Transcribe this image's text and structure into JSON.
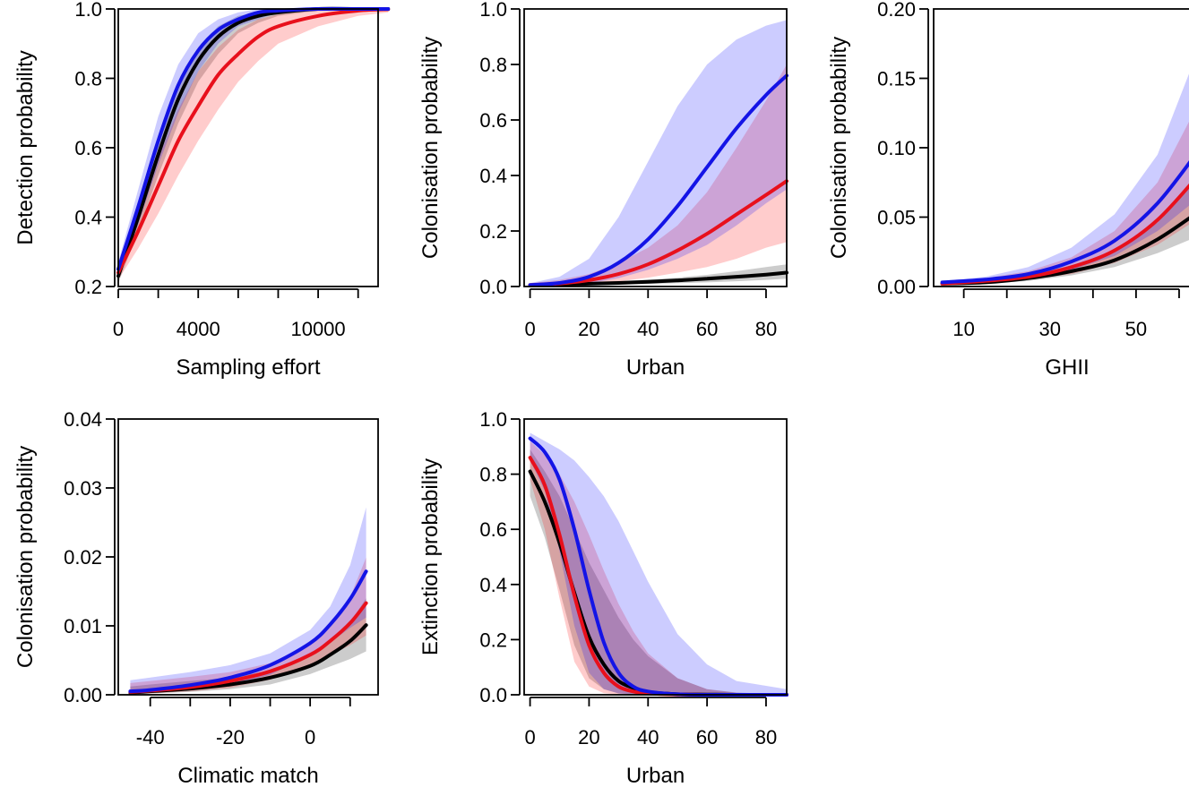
{
  "colors": {
    "black_series": "#000000",
    "red_series": "#e8101c",
    "blue_series": "#1414e6",
    "black_band": "rgba(0,0,0,0.20)",
    "red_band": "rgba(255,0,0,0.20)",
    "blue_band": "rgba(0,0,255,0.20)"
  },
  "chart_data": [
    {
      "type": "line",
      "xlabel": "Sampling effort",
      "ylabel": "Detection probability",
      "xlim": [
        0,
        13000
      ],
      "ylim": [
        0.2,
        1.0
      ],
      "xticks": [
        0,
        2000,
        4000,
        6000,
        8000,
        10000,
        12000
      ],
      "xtick_labels": [
        "0",
        "",
        "4000",
        "",
        "",
        "10000",
        ""
      ],
      "yticks": [
        0.2,
        0.4,
        0.6,
        0.8,
        1.0
      ],
      "ytick_labels": [
        "0.2",
        "0.4",
        "0.6",
        "0.8",
        "1.0"
      ],
      "series": [
        {
          "color": "black",
          "x": [
            0,
            1000,
            2000,
            3000,
            4000,
            5000,
            6000,
            7000,
            8000,
            10000,
            12000,
            13500
          ],
          "y": [
            0.23,
            0.4,
            0.58,
            0.74,
            0.85,
            0.92,
            0.96,
            0.98,
            0.99,
            1.0,
            1.0,
            1.0
          ],
          "lower": [
            0.21,
            0.36,
            0.52,
            0.67,
            0.79,
            0.87,
            0.93,
            0.96,
            0.98,
            0.995,
            1.0,
            1.0
          ],
          "upper": [
            0.25,
            0.44,
            0.63,
            0.79,
            0.89,
            0.95,
            0.98,
            0.99,
            1.0,
            1.0,
            1.0,
            1.0
          ]
        },
        {
          "color": "red",
          "x": [
            0,
            1000,
            2000,
            3000,
            4000,
            5000,
            6000,
            7000,
            8000,
            10000,
            12000,
            13500
          ],
          "y": [
            0.24,
            0.36,
            0.49,
            0.62,
            0.72,
            0.81,
            0.87,
            0.92,
            0.95,
            0.98,
            0.995,
            0.999
          ],
          "lower": [
            0.22,
            0.31,
            0.41,
            0.52,
            0.62,
            0.71,
            0.79,
            0.85,
            0.9,
            0.95,
            0.98,
            0.99
          ],
          "upper": [
            0.26,
            0.41,
            0.57,
            0.71,
            0.82,
            0.89,
            0.94,
            0.97,
            0.985,
            0.997,
            1.0,
            1.0
          ]
        },
        {
          "color": "blue",
          "x": [
            0,
            1000,
            2000,
            3000,
            4000,
            5000,
            6000,
            7000,
            8000,
            10000,
            12000,
            13500
          ],
          "y": [
            0.25,
            0.43,
            0.62,
            0.78,
            0.88,
            0.94,
            0.97,
            0.99,
            0.995,
            1.0,
            1.0,
            1.0
          ],
          "lower": [
            0.23,
            0.38,
            0.55,
            0.7,
            0.82,
            0.9,
            0.95,
            0.97,
            0.99,
            1.0,
            1.0,
            1.0
          ],
          "upper": [
            0.27,
            0.48,
            0.69,
            0.84,
            0.93,
            0.97,
            0.99,
            1.0,
            1.0,
            1.0,
            1.0,
            1.0
          ]
        }
      ]
    },
    {
      "type": "line",
      "xlabel": "Urban",
      "ylabel": "Colonisation probability",
      "xlim": [
        -2,
        87
      ],
      "ylim": [
        0,
        1.0
      ],
      "xticks": [
        0,
        20,
        40,
        60,
        80
      ],
      "xtick_labels": [
        "0",
        "20",
        "40",
        "60",
        "80"
      ],
      "yticks": [
        0,
        0.2,
        0.4,
        0.6,
        0.8,
        1.0
      ],
      "ytick_labels": [
        "0.0",
        "0.2",
        "0.4",
        "0.6",
        "0.8",
        "1.0"
      ],
      "series": [
        {
          "color": "black",
          "x": [
            0,
            10,
            20,
            30,
            40,
            50,
            60,
            70,
            80,
            87
          ],
          "y": [
            0.005,
            0.007,
            0.01,
            0.013,
            0.017,
            0.022,
            0.028,
            0.035,
            0.043,
            0.05
          ],
          "lower": [
            0.002,
            0.003,
            0.005,
            0.007,
            0.009,
            0.012,
            0.015,
            0.019,
            0.024,
            0.028
          ],
          "upper": [
            0.01,
            0.012,
            0.015,
            0.019,
            0.025,
            0.032,
            0.042,
            0.055,
            0.07,
            0.08
          ]
        },
        {
          "color": "red",
          "x": [
            0,
            10,
            20,
            30,
            40,
            50,
            60,
            70,
            80,
            87
          ],
          "y": [
            0.005,
            0.011,
            0.023,
            0.045,
            0.08,
            0.13,
            0.19,
            0.26,
            0.33,
            0.38
          ],
          "lower": [
            0.002,
            0.004,
            0.009,
            0.018,
            0.032,
            0.05,
            0.07,
            0.1,
            0.14,
            0.16
          ],
          "upper": [
            0.012,
            0.024,
            0.045,
            0.085,
            0.14,
            0.22,
            0.34,
            0.5,
            0.67,
            0.8
          ]
        },
        {
          "color": "blue",
          "x": [
            0,
            10,
            20,
            30,
            40,
            50,
            60,
            70,
            80,
            87
          ],
          "y": [
            0.005,
            0.013,
            0.035,
            0.085,
            0.17,
            0.29,
            0.43,
            0.57,
            0.69,
            0.76
          ],
          "lower": [
            0.002,
            0.004,
            0.011,
            0.03,
            0.06,
            0.1,
            0.15,
            0.22,
            0.3,
            0.35
          ],
          "upper": [
            0.012,
            0.035,
            0.1,
            0.25,
            0.45,
            0.65,
            0.8,
            0.89,
            0.94,
            0.96
          ]
        }
      ]
    },
    {
      "type": "line",
      "xlabel": "GHII",
      "ylabel": "Colonisation probability",
      "xlim": [
        3,
        65
      ],
      "ylim": [
        0,
        0.2
      ],
      "xticks": [
        10,
        20,
        30,
        40,
        50,
        60
      ],
      "xtick_labels": [
        "10",
        "",
        "30",
        "",
        "50",
        ""
      ],
      "yticks": [
        0,
        0.05,
        0.1,
        0.15,
        0.2
      ],
      "ytick_labels": [
        "0.00",
        "0.05",
        "0.10",
        "0.15",
        "0.20"
      ],
      "series": [
        {
          "color": "black",
          "x": [
            5,
            15,
            25,
            35,
            45,
            55,
            65
          ],
          "y": [
            0.002,
            0.003,
            0.006,
            0.011,
            0.019,
            0.034,
            0.055
          ],
          "lower": [
            0.001,
            0.002,
            0.004,
            0.008,
            0.014,
            0.024,
            0.037
          ],
          "upper": [
            0.003,
            0.005,
            0.009,
            0.015,
            0.026,
            0.046,
            0.08
          ]
        },
        {
          "color": "red",
          "x": [
            5,
            15,
            25,
            35,
            45,
            55,
            65
          ],
          "y": [
            0.002,
            0.004,
            0.007,
            0.014,
            0.026,
            0.048,
            0.082
          ],
          "lower": [
            0.001,
            0.003,
            0.005,
            0.009,
            0.017,
            0.03,
            0.05
          ],
          "upper": [
            0.004,
            0.006,
            0.011,
            0.021,
            0.04,
            0.075,
            0.135
          ]
        },
        {
          "color": "blue",
          "x": [
            5,
            15,
            25,
            35,
            45,
            55,
            65
          ],
          "y": [
            0.003,
            0.005,
            0.009,
            0.018,
            0.033,
            0.06,
            0.1
          ],
          "lower": [
            0.002,
            0.003,
            0.006,
            0.012,
            0.022,
            0.04,
            0.065
          ],
          "upper": [
            0.004,
            0.007,
            0.014,
            0.028,
            0.052,
            0.095,
            0.175
          ]
        }
      ]
    },
    {
      "type": "line",
      "xlabel": "Climatic match",
      "ylabel": "Colonisation probability",
      "xlim": [
        -48,
        17
      ],
      "ylim": [
        0,
        0.04
      ],
      "xticks": [
        -40,
        -30,
        -20,
        -10,
        0,
        10
      ],
      "xtick_labels": [
        "-40",
        "",
        "-20",
        "",
        "0",
        ""
      ],
      "yticks": [
        0,
        0.01,
        0.02,
        0.03,
        0.04
      ],
      "ytick_labels": [
        "0.00",
        "0.01",
        "0.02",
        "0.03",
        "0.04"
      ],
      "series": [
        {
          "color": "black",
          "x": [
            -45,
            -40,
            -30,
            -20,
            -10,
            0,
            5,
            10,
            14
          ],
          "y": [
            0.0003,
            0.0005,
            0.0009,
            0.0015,
            0.0025,
            0.0042,
            0.0058,
            0.0078,
            0.0101
          ],
          "lower": [
            0.0001,
            0.0002,
            0.0004,
            0.0008,
            0.0015,
            0.003,
            0.0041,
            0.0052,
            0.0063
          ],
          "upper": [
            0.0012,
            0.0015,
            0.002,
            0.0025,
            0.0035,
            0.0055,
            0.0075,
            0.0105,
            0.014
          ]
        },
        {
          "color": "red",
          "x": [
            -45,
            -40,
            -30,
            -20,
            -10,
            0,
            5,
            10,
            14
          ],
          "y": [
            0.0004,
            0.0006,
            0.0011,
            0.002,
            0.0034,
            0.0058,
            0.0078,
            0.0104,
            0.0133
          ],
          "lower": [
            0.0001,
            0.0002,
            0.0005,
            0.001,
            0.0022,
            0.0043,
            0.0057,
            0.0072,
            0.0086
          ],
          "upper": [
            0.0017,
            0.002,
            0.0026,
            0.0033,
            0.0046,
            0.0074,
            0.0101,
            0.0142,
            0.0199
          ]
        },
        {
          "color": "blue",
          "x": [
            -45,
            -40,
            -30,
            -20,
            -10,
            0,
            5,
            10,
            14
          ],
          "y": [
            0.0005,
            0.0007,
            0.0014,
            0.0025,
            0.0043,
            0.0075,
            0.0102,
            0.0139,
            0.0179
          ],
          "lower": [
            0.0002,
            0.0003,
            0.0007,
            0.0014,
            0.0029,
            0.0058,
            0.0076,
            0.0097,
            0.0112
          ],
          "upper": [
            0.0021,
            0.0025,
            0.0033,
            0.0043,
            0.006,
            0.0094,
            0.0128,
            0.0188,
            0.0272
          ]
        }
      ]
    },
    {
      "type": "line",
      "xlabel": "Urban",
      "ylabel": "Extinction probability",
      "xlim": [
        -2,
        87
      ],
      "ylim": [
        0,
        1.0
      ],
      "xticks": [
        0,
        20,
        40,
        60,
        80
      ],
      "xtick_labels": [
        "0",
        "20",
        "40",
        "60",
        "80"
      ],
      "yticks": [
        0,
        0.2,
        0.4,
        0.6,
        0.8,
        1.0
      ],
      "ytick_labels": [
        "0.0",
        "0.2",
        "0.4",
        "0.6",
        "0.8",
        "1.0"
      ],
      "series": [
        {
          "color": "black",
          "x": [
            0,
            5,
            10,
            15,
            20,
            25,
            30,
            35,
            40,
            50,
            60,
            70,
            87
          ],
          "y": [
            0.81,
            0.7,
            0.55,
            0.37,
            0.21,
            0.11,
            0.05,
            0.025,
            0.01,
            0.002,
            0.001,
            0,
            0
          ],
          "lower": [
            0.72,
            0.57,
            0.38,
            0.18,
            0.06,
            0.02,
            0.005,
            0.002,
            0.001,
            0,
            0,
            0,
            0
          ],
          "upper": [
            0.89,
            0.81,
            0.72,
            0.6,
            0.48,
            0.38,
            0.28,
            0.2,
            0.14,
            0.06,
            0.02,
            0.008,
            0.002
          ]
        },
        {
          "color": "red",
          "x": [
            0,
            5,
            10,
            15,
            20,
            25,
            30,
            35,
            40,
            50,
            60,
            70,
            87
          ],
          "y": [
            0.86,
            0.76,
            0.58,
            0.36,
            0.18,
            0.08,
            0.03,
            0.012,
            0.005,
            0.001,
            0,
            0,
            0
          ],
          "lower": [
            0.78,
            0.6,
            0.35,
            0.12,
            0.03,
            0.006,
            0.001,
            0,
            0,
            0,
            0,
            0,
            0
          ],
          "upper": [
            0.92,
            0.87,
            0.8,
            0.7,
            0.58,
            0.45,
            0.33,
            0.23,
            0.15,
            0.06,
            0.02,
            0.007,
            0.001
          ]
        },
        {
          "color": "blue",
          "x": [
            0,
            5,
            10,
            15,
            20,
            25,
            30,
            35,
            40,
            50,
            60,
            70,
            87
          ],
          "y": [
            0.93,
            0.88,
            0.78,
            0.6,
            0.38,
            0.19,
            0.08,
            0.03,
            0.012,
            0.002,
            0,
            0,
            0
          ],
          "lower": [
            0.85,
            0.74,
            0.52,
            0.25,
            0.08,
            0.02,
            0.005,
            0.001,
            0,
            0,
            0,
            0,
            0
          ],
          "upper": [
            0.95,
            0.92,
            0.89,
            0.85,
            0.79,
            0.72,
            0.63,
            0.52,
            0.41,
            0.22,
            0.11,
            0.05,
            0.02
          ]
        }
      ]
    }
  ]
}
